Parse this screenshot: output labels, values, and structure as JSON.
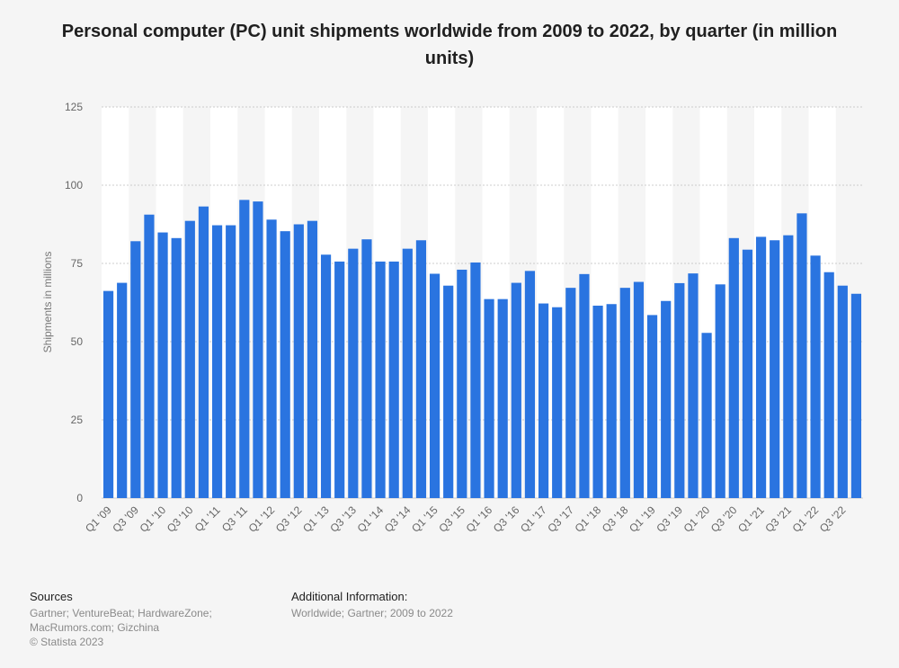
{
  "title": "Personal computer (PC) unit shipments worldwide from 2009 to 2022, by quarter (in million units)",
  "colors": {
    "bar": "#2a74e0",
    "band": "#ffffff",
    "grid": "#cccccc",
    "background": "#f5f5f5"
  },
  "chart_data": {
    "type": "bar",
    "ylabel": "Shipments in millions",
    "ylim": [
      0,
      125
    ],
    "yticks": [
      0,
      25,
      50,
      75,
      100,
      125
    ],
    "grid": true,
    "categories": [
      "Q1 '09",
      "Q2 '09",
      "Q3 '09",
      "Q4 '09",
      "Q1 '10",
      "Q2 '10",
      "Q3 '10",
      "Q4 '10",
      "Q1 '11",
      "Q2 '11",
      "Q3 '11",
      "Q4 '11",
      "Q1 '12",
      "Q2 '12",
      "Q3 '12",
      "Q4 '12",
      "Q1 '13",
      "Q2 '13",
      "Q3 '13",
      "Q4 '13",
      "Q1 '14",
      "Q2 '14",
      "Q3 '14",
      "Q4 '14",
      "Q1 '15",
      "Q2 '15",
      "Q3 '15",
      "Q4 '15",
      "Q1 '16",
      "Q2 '16",
      "Q3 '16",
      "Q4 '16",
      "Q1 '17",
      "Q2 '17",
      "Q3 '17",
      "Q4 '17",
      "Q1 '18",
      "Q2 '18",
      "Q3 '18",
      "Q4 '18",
      "Q1 '19",
      "Q2 '19",
      "Q3 '19",
      "Q4 '19",
      "Q1 '20",
      "Q2 '20",
      "Q3 '20",
      "Q4 '20",
      "Q1 '21",
      "Q2 '21",
      "Q3 '21",
      "Q4 '21",
      "Q1 '22",
      "Q2 '22",
      "Q3 '22",
      "Q4 '22"
    ],
    "tick_labels_shown": [
      "Q1 '09",
      "Q3 '09",
      "Q1 '10",
      "Q3 '10",
      "Q1 '11",
      "Q3 '11",
      "Q1 '12",
      "Q3 '12",
      "Q1 '13",
      "Q3 '13",
      "Q1 '14",
      "Q3 '14",
      "Q1 '15",
      "Q3 '15",
      "Q1 '16",
      "Q3 '16",
      "Q1 '17",
      "Q3 '17",
      "Q1 '18",
      "Q3 '18",
      "Q1 '19",
      "Q3 '19",
      "Q1 '20",
      "Q3 '20",
      "Q1 '21",
      "Q3 '21",
      "Q1 '22",
      "Q3 '22"
    ],
    "values": [
      66.2,
      68.8,
      82.1,
      90.6,
      84.9,
      83.1,
      88.6,
      93.2,
      87.2,
      87.2,
      95.3,
      94.8,
      89.0,
      85.3,
      87.5,
      88.6,
      77.8,
      75.6,
      79.7,
      82.7,
      75.6,
      75.6,
      79.7,
      82.4,
      71.7,
      67.9,
      73.0,
      75.3,
      63.6,
      63.6,
      68.8,
      72.6,
      62.2,
      61.0,
      67.2,
      71.6,
      61.5,
      62.0,
      67.2,
      69.1,
      58.5,
      63.0,
      68.7,
      71.8,
      52.8,
      68.3,
      83.1,
      79.4,
      83.5,
      82.4,
      84.0,
      91.0,
      77.5,
      72.2,
      67.9,
      65.3
    ]
  },
  "sources": {
    "heading": "Sources",
    "lines": [
      "Gartner; VentureBeat; HardwareZone;",
      "MacRumors.com; Gizchina",
      "© Statista 2023"
    ]
  },
  "additional": {
    "heading": "Additional Information:",
    "lines": [
      "Worldwide; Gartner; 2009 to 2022"
    ]
  }
}
